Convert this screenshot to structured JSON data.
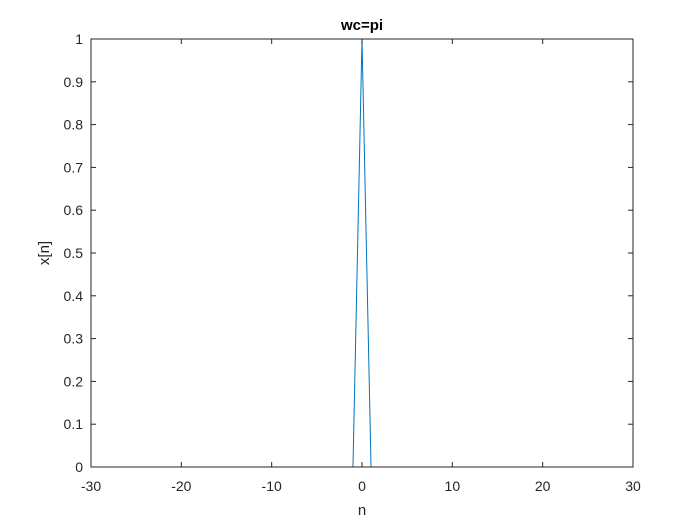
{
  "chart_data": {
    "type": "line",
    "title": "wc=pi",
    "xlabel": "n",
    "ylabel": "x[n]",
    "xlim": [
      -30,
      30
    ],
    "ylim": [
      0,
      1
    ],
    "xticks": [
      -30,
      -20,
      -10,
      0,
      10,
      20,
      30
    ],
    "xtick_labels": [
      "-30",
      "-20",
      "-10",
      "0",
      "10",
      "20",
      "30"
    ],
    "yticks": [
      0,
      0.1,
      0.2,
      0.3,
      0.4,
      0.5,
      0.6,
      0.7,
      0.8,
      0.9,
      1
    ],
    "ytick_labels": [
      "0",
      "0.1",
      "0.2",
      "0.3",
      "0.4",
      "0.5",
      "0.6",
      "0.7",
      "0.8",
      "0.9",
      "1"
    ],
    "grid": false,
    "box": true,
    "series": [
      {
        "color": "#0072BD",
        "x": [
          -30,
          -29,
          -28,
          -27,
          -26,
          -25,
          -24,
          -23,
          -22,
          -21,
          -20,
          -19,
          -18,
          -17,
          -16,
          -15,
          -14,
          -13,
          -12,
          -11,
          -10,
          -9,
          -8,
          -7,
          -6,
          -5,
          -4,
          -3,
          -2,
          -1,
          0,
          1,
          2,
          3,
          4,
          5,
          6,
          7,
          8,
          9,
          10,
          11,
          12,
          13,
          14,
          15,
          16,
          17,
          18,
          19,
          20,
          21,
          22,
          23,
          24,
          25,
          26,
          27,
          28,
          29,
          30
        ],
        "y": [
          0,
          0,
          0,
          0,
          0,
          0,
          0,
          0,
          0,
          0,
          0,
          0,
          0,
          0,
          0,
          0,
          0,
          0,
          0,
          0,
          0,
          0,
          0,
          0,
          0,
          0,
          0,
          0,
          0,
          0,
          1,
          0,
          0,
          0,
          0,
          0,
          0,
          0,
          0,
          0,
          0,
          0,
          0,
          0,
          0,
          0,
          0,
          0,
          0,
          0,
          0,
          0,
          0,
          0,
          0,
          0,
          0,
          0,
          0,
          0,
          0
        ]
      }
    ]
  }
}
